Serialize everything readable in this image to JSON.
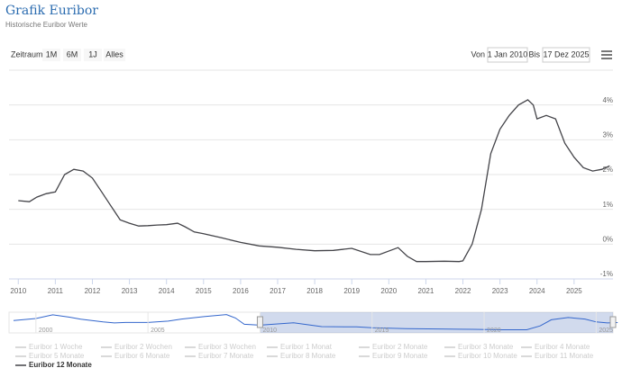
{
  "title": "Grafik Euribor",
  "subtitle": "Historische Euribor Werte",
  "range_selector": {
    "label": "Zeitraum",
    "buttons": [
      "1M",
      "6M",
      "1J",
      "Alles"
    ],
    "from_label": "Von",
    "from": "1 Jan 2010",
    "to_label": "Bis",
    "to": "17 Dez 2025"
  },
  "chart_data": {
    "type": "line",
    "x": [
      2010.0,
      2010.3,
      2010.5,
      2010.75,
      2011.0,
      2011.25,
      2011.5,
      2011.75,
      2012.0,
      2012.25,
      2012.5,
      2012.75,
      2013.0,
      2013.25,
      2013.5,
      2013.75,
      2014.0,
      2014.3,
      2014.5,
      2014.75,
      2015.0,
      2015.5,
      2016.0,
      2016.5,
      2017.0,
      2017.5,
      2018.0,
      2018.5,
      2019.0,
      2019.5,
      2019.75,
      2020.25,
      2020.5,
      2020.75,
      2021.0,
      2021.5,
      2021.9,
      2022.0,
      2022.25,
      2022.5,
      2022.75,
      2023.0,
      2023.25,
      2023.5,
      2023.75,
      2023.9,
      2024.0,
      2024.25,
      2024.5,
      2024.75,
      2025.0,
      2025.25,
      2025.5,
      2025.75,
      2025.96
    ],
    "series": [
      {
        "name": "Euribor 1 Woche",
        "visible": false
      },
      {
        "name": "Euribor 2 Wochen",
        "visible": false
      },
      {
        "name": "Euribor 3 Wochen",
        "visible": false
      },
      {
        "name": "Euribor 1 Monat",
        "visible": false
      },
      {
        "name": "Euribor 2 Monate",
        "visible": false
      },
      {
        "name": "Euribor 3 Monate",
        "visible": false
      },
      {
        "name": "Euribor 4 Monate",
        "visible": false
      },
      {
        "name": "Euribor 5 Monate",
        "visible": false
      },
      {
        "name": "Euribor 6 Monate",
        "visible": false
      },
      {
        "name": "Euribor 7 Monate",
        "visible": false
      },
      {
        "name": "Euribor 8 Monate",
        "visible": false
      },
      {
        "name": "Euribor 9 Monate",
        "visible": false
      },
      {
        "name": "Euribor 10 Monate",
        "visible": false
      },
      {
        "name": "Euribor 11 Monate",
        "visible": false
      },
      {
        "name": "Euribor 12 Monate",
        "visible": true,
        "color": "#434348",
        "values": [
          1.25,
          1.22,
          1.35,
          1.45,
          1.5,
          2.0,
          2.15,
          2.1,
          1.9,
          1.5,
          1.1,
          0.7,
          0.6,
          0.52,
          0.53,
          0.55,
          0.56,
          0.6,
          0.5,
          0.35,
          0.3,
          0.18,
          0.05,
          -0.05,
          -0.09,
          -0.15,
          -0.19,
          -0.18,
          -0.12,
          -0.3,
          -0.3,
          -0.1,
          -0.35,
          -0.5,
          -0.5,
          -0.49,
          -0.5,
          -0.48,
          0.0,
          1.0,
          2.6,
          3.3,
          3.7,
          4.0,
          4.15,
          4.0,
          3.6,
          3.7,
          3.6,
          2.9,
          2.5,
          2.2,
          2.1,
          2.15,
          2.25
        ]
      }
    ],
    "xlim": [
      2009.75,
      2026.05
    ],
    "xticks": [
      2010,
      2011,
      2012,
      2013,
      2014,
      2015,
      2016,
      2017,
      2018,
      2019,
      2020,
      2021,
      2022,
      2023,
      2024,
      2025
    ],
    "ylim": [
      -1,
      5
    ],
    "yticks": [
      {
        "value": -1,
        "label": "-1%"
      },
      {
        "value": 0,
        "label": "0%"
      },
      {
        "value": 1,
        "label": "1%"
      },
      {
        "value": 2,
        "label": "2%"
      },
      {
        "value": 3,
        "label": "3%"
      },
      {
        "value": 4,
        "label": "4%"
      },
      5
    ],
    "grid": true,
    "navigator": {
      "x": [
        1999.0,
        2000.0,
        2000.75,
        2001.5,
        2002.0,
        2003.0,
        2003.5,
        2004.0,
        2005.0,
        2005.9,
        2006.5,
        2007.5,
        2008.5,
        2008.9,
        2009.3,
        2010.0,
        2011.5,
        2012.75,
        2014.3,
        2015.0,
        2016.5,
        2018.0,
        2019.5,
        2020.75,
        2021.9,
        2022.5,
        2023.0,
        2023.75,
        2024.5,
        2025.0,
        2025.5,
        2025.96
      ],
      "values": [
        3.0,
        3.8,
        5.2,
        4.3,
        3.5,
        2.5,
        2.1,
        2.3,
        2.3,
        2.8,
        3.6,
        4.5,
        5.3,
        4.0,
        1.6,
        1.25,
        2.15,
        0.7,
        0.6,
        0.3,
        -0.05,
        -0.19,
        -0.3,
        -0.5,
        -0.5,
        1.0,
        3.3,
        4.15,
        3.6,
        2.5,
        2.1,
        2.25
      ],
      "xlim": [
        1998.8,
        2025.75
      ],
      "ylim": [
        -1,
        5.5
      ],
      "xticks": [
        2000,
        2005,
        2010,
        2015,
        2020,
        2025
      ]
    }
  }
}
